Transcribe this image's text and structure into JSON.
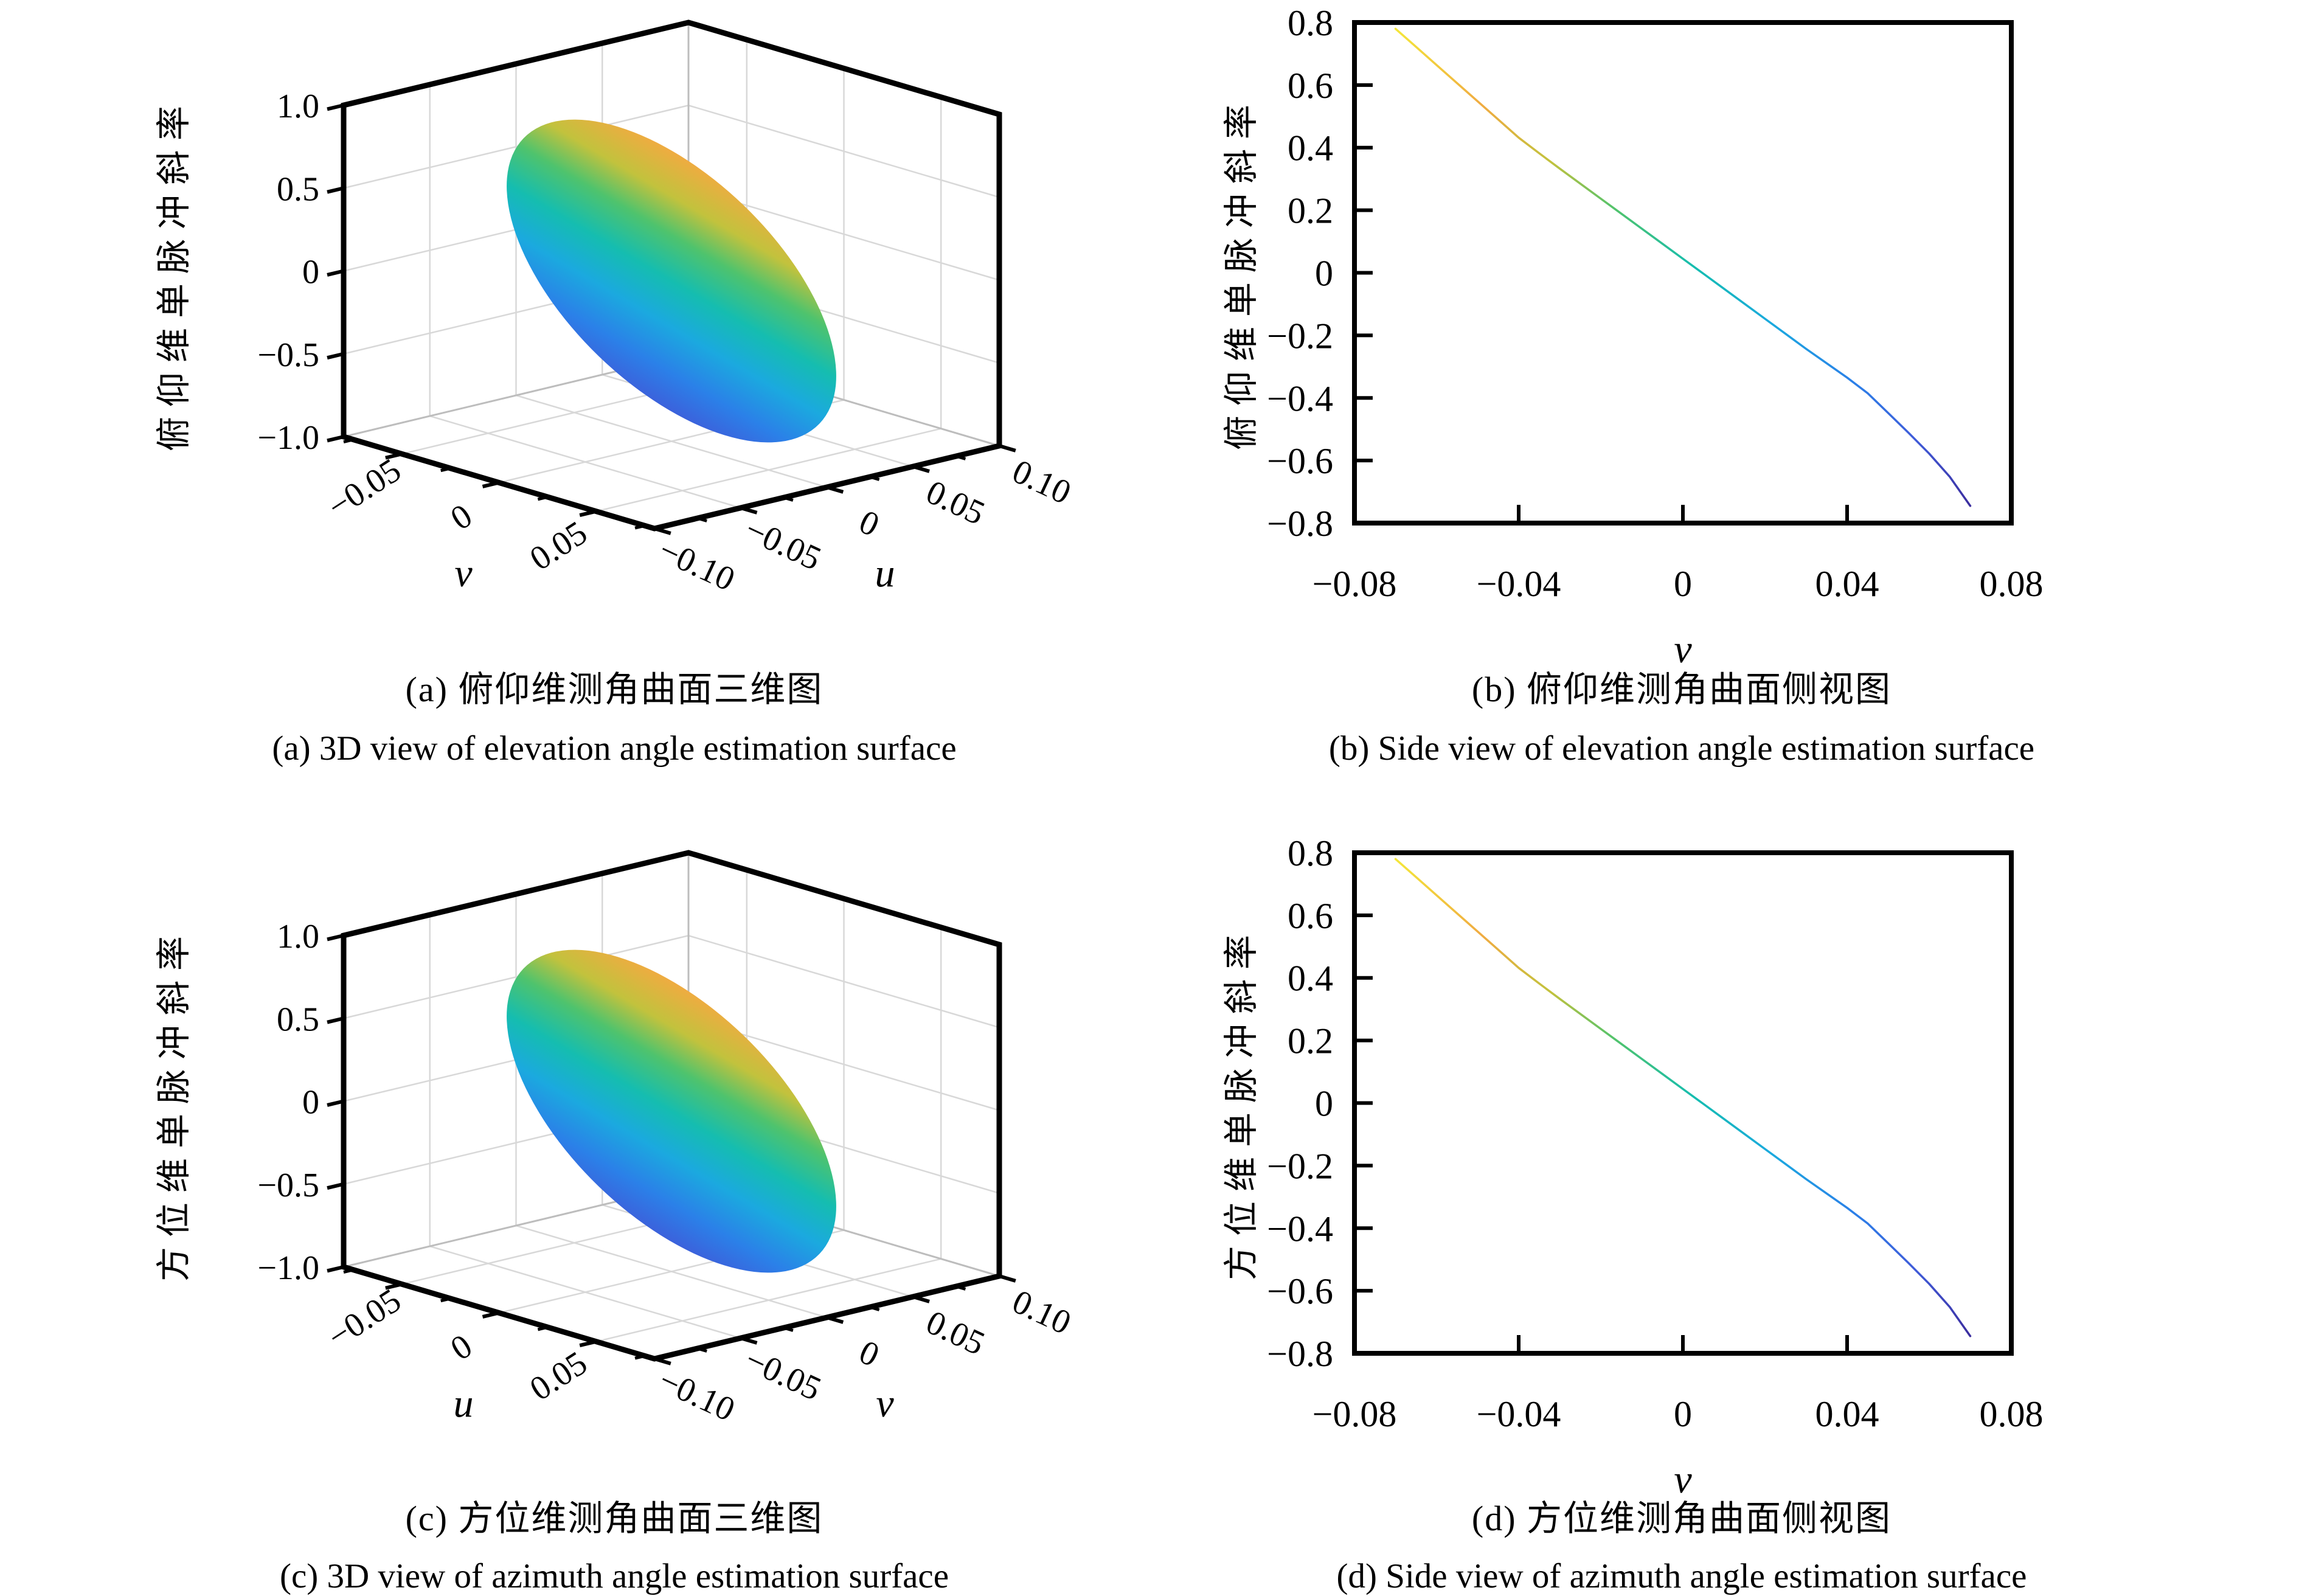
{
  "colors": {
    "background": "#ffffff",
    "axis": "#000000",
    "grid_3d": "#d8d8d8",
    "parula_stops": [
      [
        0.0,
        "#f4e73a"
      ],
      [
        0.16,
        "#f0ab41"
      ],
      [
        0.28,
        "#c2c23d"
      ],
      [
        0.38,
        "#4fc36d"
      ],
      [
        0.5,
        "#15bdb0"
      ],
      [
        0.62,
        "#1ba9df"
      ],
      [
        0.74,
        "#2b80e8"
      ],
      [
        0.86,
        "#3f5bd9"
      ],
      [
        1.0,
        "#3b2d9e"
      ]
    ]
  },
  "subplots": {
    "a": {
      "caption_zh": "(a) 俯仰维测角曲面三维图",
      "caption_en": "(a) 3D view of elevation angle estimation surface",
      "z_axis_title": "俯仰维单脉冲斜率",
      "left_axis_name": "v",
      "right_axis_name": "u"
    },
    "b": {
      "caption_zh": "(b) 俯仰维测角曲面侧视图",
      "caption_en": "(b) Side view of elevation angle estimation surface",
      "y_axis_title": "俯仰维单脉冲斜率",
      "x_axis_name": "v"
    },
    "c": {
      "caption_zh": "(c) 方位维测角曲面三维图",
      "caption_en": "(c) 3D view of azimuth angle estimation surface",
      "z_axis_title": "方位维单脉冲斜率",
      "left_axis_name": "u",
      "right_axis_name": "v"
    },
    "d": {
      "caption_zh": "(d) 方位维测角曲面侧视图",
      "caption_en": "(d) Side view of azimuth angle estimation surface",
      "y_axis_title": "方位维单脉冲斜率",
      "x_axis_name": "v"
    }
  },
  "chart_data": [
    {
      "id": "a",
      "type": "surface",
      "title_zh": "(a) 俯仰维测角曲面三维图",
      "title_en": "(a) 3D view of elevation angle estimation surface",
      "left_axis": {
        "label": "v",
        "lim": [
          -0.08,
          0.08
        ],
        "ticks": [
          -0.05,
          0,
          0.05
        ]
      },
      "right_axis": {
        "label": "u",
        "lim": [
          -0.1,
          0.1
        ],
        "ticks": [
          -0.1,
          -0.05,
          0,
          0.05,
          0.1
        ]
      },
      "z_axis": {
        "label": "俯仰维单脉冲斜率",
        "lim": [
          -1.0,
          1.0
        ],
        "ticks": [
          1.0,
          0.5,
          0,
          -0.5,
          -1.0
        ]
      },
      "colormap": "parula",
      "surface_desc": "tilted elliptical disc over the (u,v) region; z depends on v only, decreasing from +0.78 at v=-0.07 to -0.75 at v=+0.07",
      "z_extent": [
        -0.78,
        0.78
      ],
      "grid": true
    },
    {
      "id": "b",
      "type": "line",
      "title_zh": "(b) 俯仰维测角曲面侧视图",
      "title_en": "(b) Side view of elevation angle estimation surface",
      "xlabel": "v",
      "ylabel": "俯仰维单脉冲斜率",
      "xlim": [
        -0.08,
        0.08
      ],
      "ylim": [
        -0.8,
        0.8
      ],
      "xticks": [
        -0.08,
        -0.04,
        0,
        0.04,
        0.08
      ],
      "yticks": [
        0.8,
        0.6,
        0.4,
        0.2,
        0,
        -0.2,
        -0.4,
        -0.6,
        -0.8
      ],
      "colormap": "parula",
      "grid": false,
      "x": [
        -0.07,
        -0.065,
        -0.06,
        -0.055,
        -0.05,
        -0.045,
        -0.04,
        -0.035,
        -0.03,
        -0.025,
        -0.02,
        -0.015,
        -0.01,
        -0.005,
        0.0,
        0.005,
        0.01,
        0.015,
        0.02,
        0.025,
        0.03,
        0.035,
        0.04,
        0.045,
        0.05,
        0.055,
        0.06,
        0.065,
        0.07
      ],
      "y": [
        0.78,
        0.722,
        0.664,
        0.606,
        0.548,
        0.49,
        0.432,
        0.382,
        0.333,
        0.285,
        0.237,
        0.189,
        0.141,
        0.093,
        0.045,
        -0.003,
        -0.051,
        -0.099,
        -0.147,
        -0.195,
        -0.243,
        -0.289,
        -0.335,
        -0.385,
        -0.448,
        -0.512,
        -0.578,
        -0.652,
        -0.745
      ]
    },
    {
      "id": "c",
      "type": "surface",
      "title_zh": "(c) 方位维测角曲面三维图",
      "title_en": "(c) 3D view of azimuth angle estimation surface",
      "left_axis": {
        "label": "u",
        "lim": [
          -0.08,
          0.08
        ],
        "ticks": [
          -0.05,
          0,
          0.05
        ]
      },
      "right_axis": {
        "label": "v",
        "lim": [
          -0.1,
          0.1
        ],
        "ticks": [
          -0.1,
          -0.05,
          0,
          0.05,
          0.1
        ]
      },
      "z_axis": {
        "label": "方位维单脉冲斜率",
        "lim": [
          -1.0,
          1.0
        ],
        "ticks": [
          1.0,
          0.5,
          0,
          -0.5,
          -1.0
        ]
      },
      "colormap": "parula",
      "surface_desc": "tilted elliptical disc over the (u,v) region; z decreasing from +0.78 to -0.75 along the horizontal direction",
      "z_extent": [
        -0.78,
        0.78
      ],
      "grid": true
    },
    {
      "id": "d",
      "type": "line",
      "title_zh": "(d) 方位维测角曲面侧视图",
      "title_en": "(d) Side view of azimuth angle estimation surface",
      "xlabel": "v",
      "ylabel": "方位维单脉冲斜率",
      "xlim": [
        -0.08,
        0.08
      ],
      "ylim": [
        -0.8,
        0.8
      ],
      "xticks": [
        -0.08,
        -0.04,
        0,
        0.04,
        0.08
      ],
      "yticks": [
        0.8,
        0.6,
        0.4,
        0.2,
        0,
        -0.2,
        -0.4,
        -0.6,
        -0.8
      ],
      "colormap": "parula",
      "grid": false,
      "x": [
        -0.07,
        -0.065,
        -0.06,
        -0.055,
        -0.05,
        -0.045,
        -0.04,
        -0.035,
        -0.03,
        -0.025,
        -0.02,
        -0.015,
        -0.01,
        -0.005,
        0.0,
        0.005,
        0.01,
        0.015,
        0.02,
        0.025,
        0.03,
        0.035,
        0.04,
        0.045,
        0.05,
        0.055,
        0.06,
        0.065,
        0.07
      ],
      "y": [
        0.78,
        0.722,
        0.664,
        0.606,
        0.548,
        0.49,
        0.432,
        0.382,
        0.333,
        0.285,
        0.237,
        0.189,
        0.141,
        0.093,
        0.045,
        -0.003,
        -0.051,
        -0.099,
        -0.147,
        -0.195,
        -0.243,
        -0.289,
        -0.335,
        -0.385,
        -0.448,
        -0.512,
        -0.578,
        -0.652,
        -0.745
      ]
    }
  ]
}
